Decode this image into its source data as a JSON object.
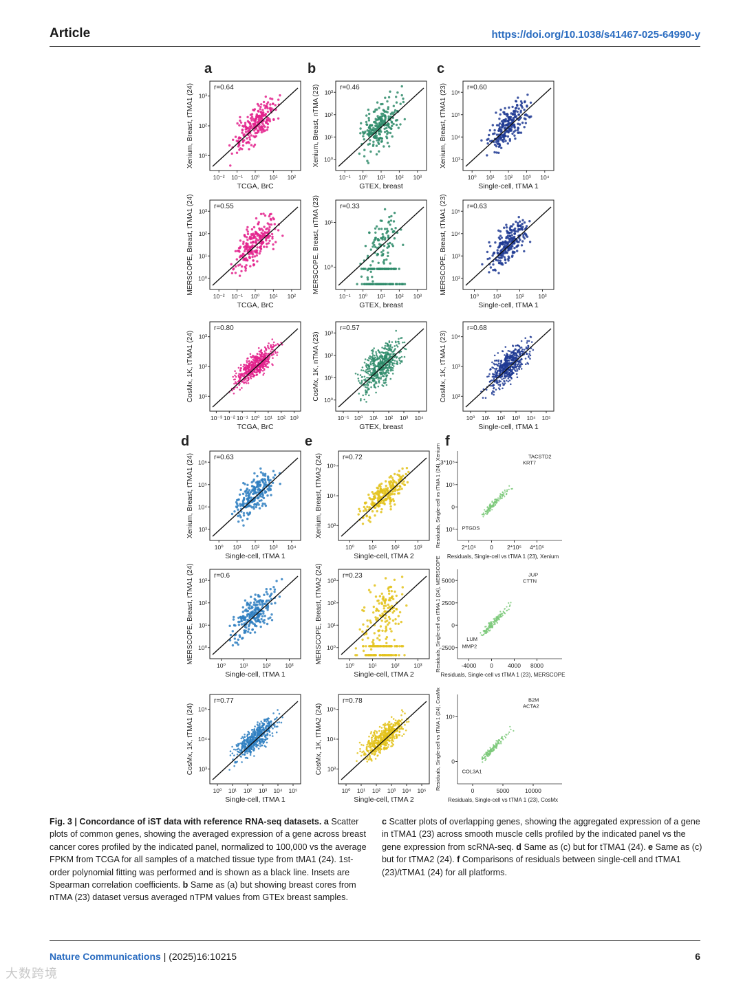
{
  "header": {
    "section": "Article",
    "doi": "https://doi.org/10.1038/s41467-025-64990-y"
  },
  "footer": {
    "journal": "Nature Communications",
    "citation": " | (2025)16:10215",
    "page": "6"
  },
  "watermark": "大数跨境",
  "colors": {
    "pink": "#e3218c",
    "green": "#2e8b6a",
    "navy": "#1f3a93",
    "blue": "#2f7fc1",
    "yellow": "#e3c21a",
    "lightgreen": "#7cc97a"
  },
  "caption": {
    "fig_label": "Fig. 3 | Concordance of iST data with reference RNA-seq datasets.",
    "a_letter": " a",
    "a_text": " Scatter plots of common genes, showing the averaged expression of a gene across breast cancer cores profiled by the indicated panel, normalized to 100,000 vs the average FPKM from TCGA for all samples of a matched tissue type from tMA1 (24). 1st-order polynomial fitting was performed and is shown as a black line. Insets are Spearman correlation coefficients.",
    "b_letter": " b",
    "b_text": " Same as (a) but showing breast cores from nTMA (23) dataset versus averaged nTPM values from GTEx breast samples.",
    "c_letter": " c",
    "c_text": " Scatter plots of overlapping genes, showing the aggregated expression of a gene in tTMA1 (23) across smooth muscle cells profiled by the indicated panel vs the gene expression from scRNA-seq.",
    "d_letter": " d",
    "d_text": " Same as (c) but for tTMA1 (24).",
    "e_letter": " e",
    "e_text": " Same as (c) but for tTMA2 (24).",
    "f_letter": " f",
    "f_text": " Comparisons of residuals between single-cell and tTMA1 (23)/tTMA1 (24) for all platforms."
  },
  "panel_letters": [
    "a",
    "b",
    "c",
    "d",
    "e",
    "f"
  ],
  "chart_data": [
    {
      "panel": "a",
      "row": 1,
      "type": "scatter",
      "color": "pink",
      "r": "r=0.64",
      "ylabel": "Xenium, Breast, tTMA1 (24)",
      "xlabel": "TCGA, BrC",
      "xticks": [
        "10-2",
        "10-1",
        "100",
        "101",
        "102"
      ],
      "yticks": [
        "101",
        "102",
        "103"
      ]
    },
    {
      "panel": "a",
      "row": 2,
      "type": "scatter",
      "color": "pink",
      "r": "r=0.55",
      "ylabel": "MERSCOPE, Breast, tTMA1 (24)",
      "xlabel": "TCGA, BrC",
      "xticks": [
        "10-2",
        "10-1",
        "100",
        "101",
        "102"
      ],
      "yticks": [
        "100",
        "101",
        "102",
        "103"
      ]
    },
    {
      "panel": "a",
      "row": 3,
      "type": "scatter",
      "color": "pink",
      "r": "r=0.80",
      "ylabel": "CosMx, 1K, tTMA1 (24)",
      "xlabel": "TCGA, BrC",
      "xticks": [
        "10-3",
        "10-2",
        "10-1",
        "100",
        "101",
        "102",
        "103"
      ],
      "yticks": [
        "101",
        "102",
        "103"
      ]
    },
    {
      "panel": "b",
      "row": 1,
      "type": "scatter",
      "color": "green",
      "r": "r=0.46",
      "ylabel": "Xenium, Breast, nTMA (23)",
      "xlabel": "GTEX, breast",
      "xticks": [
        "10-1",
        "100",
        "101",
        "102",
        "103"
      ],
      "yticks": [
        "100",
        "101",
        "102",
        "103"
      ]
    },
    {
      "panel": "b",
      "row": 2,
      "type": "scatter",
      "color": "green",
      "r": "r=0.33",
      "ylabel": "MERSCOPE, Breast, nTMA (23)",
      "xlabel": "GTEX, breast",
      "xticks": [
        "10-1",
        "100",
        "101",
        "102",
        "103"
      ],
      "yticks": [
        "100",
        "101"
      ]
    },
    {
      "panel": "b",
      "row": 3,
      "type": "scatter",
      "color": "green",
      "r": "r=0.57",
      "ylabel": "CosMx, 1K, nTMA (23)",
      "xlabel": "GTEX, breast",
      "xticks": [
        "10-1",
        "100",
        "101",
        "102",
        "103",
        "104"
      ],
      "yticks": [
        "100",
        "101",
        "102",
        "103"
      ]
    },
    {
      "panel": "c",
      "row": 1,
      "type": "scatter",
      "color": "navy",
      "r": "r=0.60",
      "ylabel": "Xenium, Breast, tTMA1 (23)",
      "xlabel": "Single-cell, tTMA 1",
      "xticks": [
        "100",
        "101",
        "102",
        "103",
        "104"
      ],
      "yticks": [
        "103",
        "104",
        "105",
        "106"
      ]
    },
    {
      "panel": "c",
      "row": 2,
      "type": "scatter",
      "color": "navy",
      "r": "r=0.63",
      "ylabel": "MERSCOPE, Breast, tTMA1 (23)",
      "xlabel": "Single-cell, tTMA 1",
      "xticks": [
        "100",
        "101",
        "102",
        "103"
      ],
      "yticks": [
        "102",
        "103",
        "104",
        "105"
      ]
    },
    {
      "panel": "c",
      "row": 3,
      "type": "scatter",
      "color": "navy",
      "r": "r=0.68",
      "ylabel": "CosMx, 1K, tTMA1 (23)",
      "xlabel": "Single-cell, tTMA 1",
      "xticks": [
        "100",
        "101",
        "102",
        "103",
        "104",
        "105"
      ],
      "yticks": [
        "102",
        "103",
        "104"
      ]
    },
    {
      "panel": "d",
      "row": 1,
      "type": "scatter",
      "color": "blue",
      "r": "r=0.63",
      "ylabel": "Xenium, Breast, tTMA1 (24)",
      "xlabel": "Single-cell, tTMA 1",
      "xticks": [
        "100",
        "101",
        "102",
        "103",
        "104"
      ],
      "yticks": [
        "103",
        "104",
        "105",
        "106"
      ]
    },
    {
      "panel": "d",
      "row": 2,
      "type": "scatter",
      "color": "blue",
      "r": "r=0.6",
      "ylabel": "MERSCOPE, Breast, tTMA1 (24)",
      "xlabel": "Single-cell, tTMA 1",
      "xticks": [
        "100",
        "101",
        "102",
        "103"
      ],
      "yticks": [
        "100",
        "101",
        "102",
        "103"
      ]
    },
    {
      "panel": "d",
      "row": 3,
      "type": "scatter",
      "color": "blue",
      "r": "r=0.77",
      "ylabel": "CosMx, 1K, tTMA1 (24)",
      "xlabel": "Single-cell, tTMA 1",
      "xticks": [
        "100",
        "101",
        "102",
        "103",
        "104",
        "105"
      ],
      "yticks": [
        "103",
        "104",
        "105"
      ]
    },
    {
      "panel": "e",
      "row": 1,
      "type": "scatter",
      "color": "yellow",
      "r": "r=0.72",
      "ylabel": "Xenium, Breast, tTMA2 (24)",
      "xlabel": "Single-cell, tTMA 2",
      "xticks": [
        "100",
        "101",
        "102",
        "103"
      ],
      "yticks": [
        "103",
        "104",
        "105"
      ]
    },
    {
      "panel": "e",
      "row": 2,
      "type": "scatter",
      "color": "yellow",
      "r": "r=0.23",
      "ylabel": "MERSCOPE, Breast, tTMA2 (24)",
      "xlabel": "Single-cell, tTMA 2",
      "xticks": [
        "100",
        "101",
        "102",
        "103"
      ],
      "yticks": [
        "100",
        "101",
        "102",
        "103"
      ]
    },
    {
      "panel": "e",
      "row": 3,
      "type": "scatter",
      "color": "yellow",
      "r": "r=0.78",
      "ylabel": "CosMx, 1K, tTMA2 (24)",
      "xlabel": "Single-cell, tTMA 2",
      "xticks": [
        "100",
        "101",
        "102",
        "103",
        "104",
        "105"
      ],
      "yticks": [
        "103",
        "104",
        "105"
      ]
    },
    {
      "panel": "f",
      "row": 1,
      "type": "scatter",
      "color": "lightgreen",
      "ylabel": "Residuals, Single-cell vs tTMA 1 (24), Xenium",
      "xlabel": "Residuals, Single-cell vs tTMA 1 (23), Xenium",
      "xticks": [
        "2*10⁵",
        "0",
        "2*10⁵",
        "4*10⁵"
      ],
      "yticks": [
        "3*10⁵",
        "10⁵",
        "0",
        "10⁵"
      ],
      "annotations": [
        "TACSTD2",
        "KRT7",
        "PTGDS"
      ]
    },
    {
      "panel": "f",
      "row": 2,
      "type": "scatter",
      "color": "lightgreen",
      "ylabel": "Residuals, Single-cell vs tTMA 1 (24), MERSCOPE",
      "xlabel": "Residuals, Single-cell vs tTMA 1 (23), MERSCOPE",
      "xticks": [
        "-4000",
        "0",
        "4000",
        "8000"
      ],
      "yticks": [
        "5000",
        "2500",
        "0",
        "-2500"
      ],
      "annotations": [
        "JUP",
        "CTTN",
        "MMP2",
        "LUM"
      ]
    },
    {
      "panel": "f",
      "row": 3,
      "type": "scatter",
      "color": "lightgreen",
      "ylabel": "Residuals, Single-cell vs tTMA 1 (24), CosMx",
      "xlabel": "Residuals, Single-cell vs tTMA 1 (23), CosMx",
      "xticks": [
        "0",
        "5000",
        "10000"
      ],
      "yticks": [
        "10⁵",
        "0"
      ],
      "annotations": [
        "B2M",
        "ACTA2",
        "COL3A1"
      ]
    }
  ]
}
